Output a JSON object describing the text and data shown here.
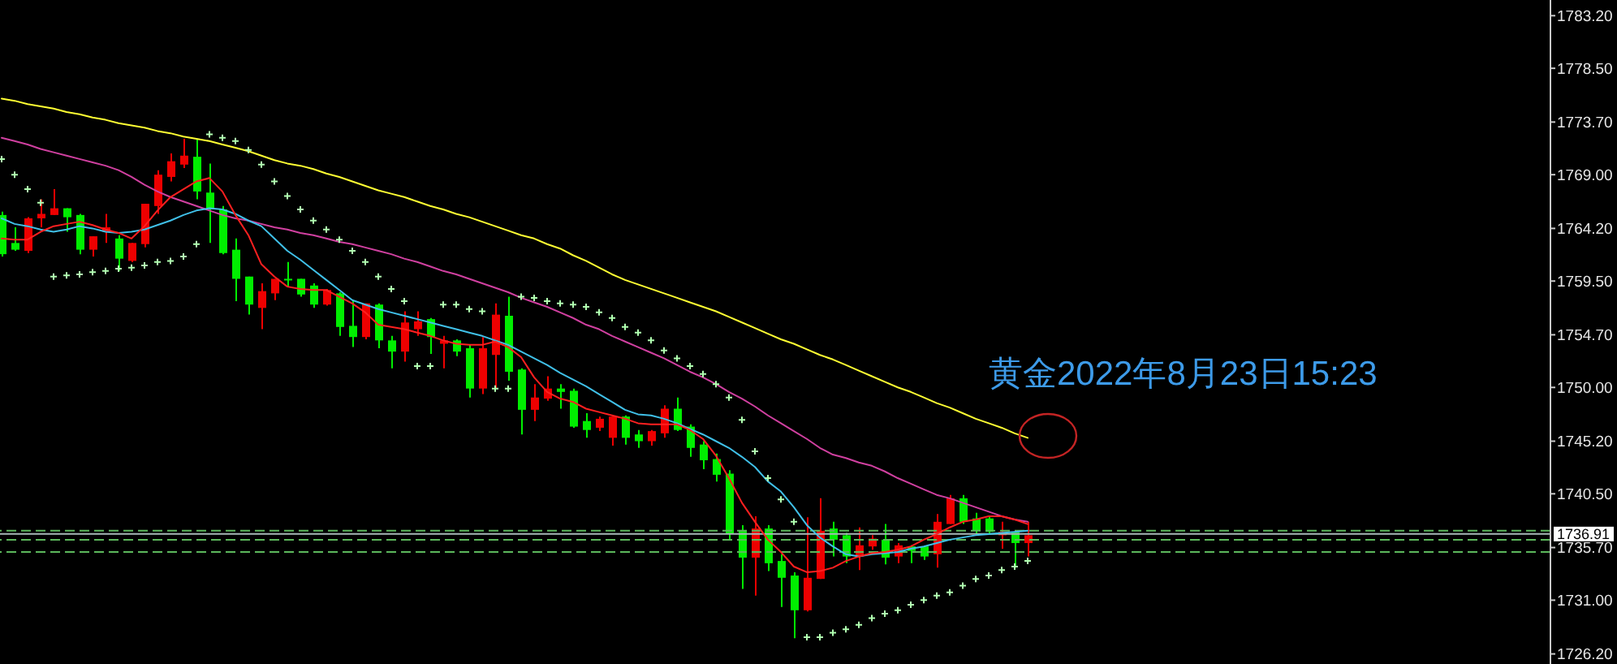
{
  "chart_data": {
    "type": "candlestick",
    "tick_labels": "y",
    "categories": [
      null,
      null,
      null,
      null,
      null,
      null,
      null,
      null,
      null,
      null,
      null,
      null,
      null,
      null,
      null,
      null,
      null,
      null,
      null,
      null,
      null,
      null,
      null,
      null,
      null,
      null,
      null,
      null,
      null,
      null,
      null,
      null,
      null,
      null,
      null,
      null,
      null,
      null,
      null,
      null,
      null,
      null,
      null,
      null,
      null,
      null,
      null,
      null,
      null,
      null,
      null,
      null,
      null,
      null,
      null,
      null,
      null,
      null,
      null,
      null,
      null,
      null,
      null,
      null,
      null,
      null,
      null,
      null,
      null,
      null,
      null,
      null,
      null,
      null,
      null,
      null,
      null,
      null,
      null,
      null
    ],
    "ohlc": [
      [
        1765.4,
        1765.7,
        1761.7,
        1761.9
      ],
      [
        1762.9,
        1764.3,
        1762.2,
        1762.3
      ],
      [
        1762.2,
        1765.2,
        1762.0,
        1765.1
      ],
      [
        1765.1,
        1766.8,
        1764.3,
        1765.5
      ],
      [
        1765.4,
        1767.7,
        1765.4,
        1766.0
      ],
      [
        1766.0,
        1766.0,
        1763.9,
        1765.2
      ],
      [
        1765.4,
        1765.5,
        1761.9,
        1762.3
      ],
      [
        1762.3,
        1763.5,
        1761.7,
        1763.5
      ],
      [
        1763.9,
        1765.5,
        1762.9,
        1764.3
      ],
      [
        1763.3,
        1763.6,
        1760.4,
        1761.5
      ],
      [
        1761.3,
        1762.9,
        1761.2,
        1762.9
      ],
      [
        1762.8,
        1766.4,
        1762.5,
        1766.4
      ],
      [
        1766.2,
        1769.4,
        1765.5,
        1769.0
      ],
      [
        1768.8,
        1770.9,
        1768.4,
        1770.2
      ],
      [
        1769.9,
        1772.2,
        1769.6,
        1770.7
      ],
      [
        1770.6,
        1772.2,
        1766.8,
        1767.5
      ],
      [
        1767.4,
        1770.0,
        1762.9,
        1765.9
      ],
      [
        1765.9,
        1766.2,
        1761.9,
        1762.0
      ],
      [
        1762.3,
        1763.3,
        1757.7,
        1759.7
      ],
      [
        1759.9,
        1759.9,
        1756.5,
        1757.4
      ],
      [
        1757.1,
        1759.3,
        1755.2,
        1758.6
      ],
      [
        1758.4,
        1759.7,
        1757.8,
        1759.7
      ],
      [
        1759.7,
        1761.2,
        1759.0,
        1759.6
      ],
      [
        1759.7,
        1759.7,
        1758.1,
        1758.3
      ],
      [
        1759.1,
        1759.3,
        1757.1,
        1757.4
      ],
      [
        1757.4,
        1758.8,
        1757.3,
        1758.7
      ],
      [
        1758.4,
        1758.5,
        1754.6,
        1755.4
      ],
      [
        1755.5,
        1757.7,
        1753.6,
        1754.5
      ],
      [
        1754.5,
        1757.5,
        1754.3,
        1757.5
      ],
      [
        1757.4,
        1757.5,
        1753.5,
        1754.2
      ],
      [
        1754.2,
        1754.6,
        1751.7,
        1753.2
      ],
      [
        1753.2,
        1756.8,
        1752.3,
        1755.8
      ],
      [
        1755.2,
        1756.8,
        1754.6,
        1755.9
      ],
      [
        1756.1,
        1756.2,
        1753.0,
        1754.5
      ],
      [
        1753.9,
        1754.6,
        1751.7,
        1754.2
      ],
      [
        1754.2,
        1754.3,
        1752.8,
        1753.2
      ],
      [
        1753.5,
        1753.8,
        1749.1,
        1749.9
      ],
      [
        1749.9,
        1754.5,
        1749.4,
        1753.5
      ],
      [
        1752.9,
        1757.5,
        1749.9,
        1756.5
      ],
      [
        1756.4,
        1758.1,
        1750.6,
        1751.4
      ],
      [
        1751.6,
        1751.7,
        1745.8,
        1748.0
      ],
      [
        1748.0,
        1750.3,
        1747.0,
        1749.1
      ],
      [
        1749.0,
        1751.0,
        1748.8,
        1749.9
      ],
      [
        1749.9,
        1750.3,
        1748.1,
        1749.6
      ],
      [
        1749.7,
        1749.9,
        1746.4,
        1746.5
      ],
      [
        1747.0,
        1747.7,
        1745.5,
        1746.2
      ],
      [
        1746.4,
        1747.4,
        1746.1,
        1747.2
      ],
      [
        1745.5,
        1747.4,
        1744.8,
        1747.4
      ],
      [
        1747.4,
        1747.5,
        1744.9,
        1745.5
      ],
      [
        1745.8,
        1746.2,
        1744.6,
        1745.2
      ],
      [
        1745.2,
        1746.2,
        1744.8,
        1746.1
      ],
      [
        1745.9,
        1748.4,
        1745.5,
        1748.1
      ],
      [
        1748.1,
        1749.1,
        1746.1,
        1746.2
      ],
      [
        1746.5,
        1746.7,
        1743.8,
        1744.6
      ],
      [
        1744.9,
        1745.2,
        1742.7,
        1743.5
      ],
      [
        1743.6,
        1744.1,
        1741.6,
        1742.2
      ],
      [
        1742.3,
        1742.6,
        1736.4,
        1736.9
      ],
      [
        1737.2,
        1737.7,
        1732.0,
        1734.8
      ],
      [
        1734.8,
        1738.5,
        1731.4,
        1737.4
      ],
      [
        1737.4,
        1737.7,
        1733.6,
        1734.3
      ],
      [
        1734.5,
        1735.1,
        1730.4,
        1733.0
      ],
      [
        1733.2,
        1733.5,
        1727.6,
        1730.1
      ],
      [
        1730.1,
        1738.4,
        1730.0,
        1733.0
      ],
      [
        1732.9,
        1740.1,
        1732.9,
        1737.2
      ],
      [
        1737.4,
        1738.0,
        1734.9,
        1736.4
      ],
      [
        1736.8,
        1737.0,
        1734.3,
        1734.9
      ],
      [
        1734.9,
        1737.5,
        1733.7,
        1735.9
      ],
      [
        1735.8,
        1736.8,
        1735.5,
        1736.5
      ],
      [
        1736.4,
        1737.8,
        1734.2,
        1734.8
      ],
      [
        1734.9,
        1736.1,
        1734.3,
        1735.9
      ],
      [
        1735.8,
        1735.9,
        1734.3,
        1735.4
      ],
      [
        1735.8,
        1735.8,
        1734.6,
        1734.9
      ],
      [
        1735.1,
        1738.7,
        1733.9,
        1738.0
      ],
      [
        1737.8,
        1740.4,
        1737.8,
        1740.1
      ],
      [
        1740.1,
        1740.4,
        1737.8,
        1738.0
      ],
      [
        1738.3,
        1738.8,
        1736.9,
        1737.2
      ],
      [
        1738.3,
        1738.5,
        1736.9,
        1737.1
      ],
      [
        1736.8,
        1738.0,
        1735.6,
        1737.1
      ],
      [
        1737.1,
        1737.2,
        1733.9,
        1736.1
      ],
      [
        1736.1,
        1738.0,
        1734.9,
        1736.8
      ]
    ],
    "colors": [
      "#00ee00",
      "#00ee00",
      "#ee0000",
      "#ee0000",
      "#ee0000",
      "#00ee00",
      "#00ee00",
      "#ee0000",
      "#ee0000",
      "#00ee00",
      "#ee0000",
      "#ee0000",
      "#ee0000",
      "#ee0000",
      "#ee0000",
      "#00ee00",
      "#00ee00",
      "#00ee00",
      "#00ee00",
      "#00ee00",
      "#ee0000",
      "#ee0000",
      "#00ee00",
      "#00ee00",
      "#00ee00",
      "#ee0000",
      "#00ee00",
      "#00ee00",
      "#ee0000",
      "#00ee00",
      "#00ee00",
      "#ee0000",
      "#ee0000",
      "#00ee00",
      "#ee0000",
      "#00ee00",
      "#00ee00",
      "#ee0000",
      "#ee0000",
      "#00ee00",
      "#00ee00",
      "#ee0000",
      "#ee0000",
      "#00ee00",
      "#00ee00",
      "#00ee00",
      "#ee0000",
      "#ee0000",
      "#00ee00",
      "#00ee00",
      "#ee0000",
      "#ee0000",
      "#00ee00",
      "#00ee00",
      "#00ee00",
      "#00ee00",
      "#00ee00",
      "#00ee00",
      "#ee0000",
      "#00ee00",
      "#00ee00",
      "#00ee00",
      "#ee0000",
      "#ee0000",
      "#00ee00",
      "#00ee00",
      "#ee0000",
      "#ee0000",
      "#00ee00",
      "#ee0000",
      "#00ee00",
      "#00ee00",
      "#ee0000",
      "#ee0000",
      "#00ee00",
      "#00ee00",
      "#00ee00",
      "#ee0000",
      "#00ee00",
      "#ee0000"
    ],
    "series": [
      {
        "type": "line",
        "color": "#ffff33",
        "values": [
          1775.8,
          1775.6,
          1775.3,
          1775.1,
          1774.9,
          1774.6,
          1774.4,
          1774.1,
          1773.9,
          1773.6,
          1773.4,
          1773.2,
          1772.9,
          1772.7,
          1772.4,
          1772.2,
          1772.0,
          1771.7,
          1771.4,
          1771.1,
          1770.7,
          1770.3,
          1770.0,
          1769.8,
          1769.5,
          1769.1,
          1768.8,
          1768.4,
          1768.0,
          1767.6,
          1767.3,
          1767.0,
          1766.6,
          1766.2,
          1765.9,
          1765.5,
          1765.2,
          1764.8,
          1764.4,
          1764.0,
          1763.6,
          1763.3,
          1762.8,
          1762.4,
          1761.8,
          1761.3,
          1760.7,
          1760.1,
          1759.6,
          1759.2,
          1758.8,
          1758.4,
          1758.0,
          1757.6,
          1757.2,
          1756.8,
          1756.3,
          1755.8,
          1755.3,
          1754.8,
          1754.3,
          1753.9,
          1753.4,
          1752.9,
          1752.5,
          1752.0,
          1751.5,
          1751.0,
          1750.5,
          1750.0,
          1749.6,
          1749.1,
          1748.6,
          1748.2,
          1747.7,
          1747.2,
          1746.8,
          1746.4,
          1745.9,
          1745.5
        ]
      },
      {
        "type": "line",
        "color": "#d040a0",
        "values": [
          1772.3,
          1772.0,
          1771.7,
          1771.3,
          1771.0,
          1770.7,
          1770.4,
          1770.1,
          1769.8,
          1769.4,
          1768.8,
          1768.1,
          1767.5,
          1767.0,
          1766.6,
          1766.2,
          1765.8,
          1765.4,
          1765.1,
          1764.9,
          1764.6,
          1764.3,
          1764.1,
          1763.8,
          1763.6,
          1763.3,
          1763.0,
          1762.8,
          1762.5,
          1762.2,
          1761.9,
          1761.5,
          1761.2,
          1760.8,
          1760.4,
          1760.1,
          1759.7,
          1759.3,
          1758.9,
          1758.5,
          1758.0,
          1757.6,
          1757.2,
          1756.7,
          1756.2,
          1755.6,
          1755.2,
          1754.6,
          1754.1,
          1753.6,
          1753.1,
          1752.6,
          1752.0,
          1751.4,
          1750.9,
          1750.3,
          1749.6,
          1749.0,
          1748.3,
          1747.5,
          1746.8,
          1746.1,
          1745.4,
          1744.6,
          1744.0,
          1743.7,
          1743.3,
          1743.0,
          1742.5,
          1741.9,
          1741.4,
          1740.9,
          1740.4,
          1740.1,
          1739.7,
          1739.3,
          1738.9,
          1738.5,
          1738.2,
          1738.0
        ]
      },
      {
        "type": "line",
        "color": "#40c0e8",
        "values": [
          1765.1,
          1764.6,
          1764.4,
          1764.1,
          1763.9,
          1764.1,
          1764.4,
          1764.2,
          1763.9,
          1763.8,
          1763.9,
          1764.1,
          1764.5,
          1764.9,
          1765.4,
          1765.8,
          1766.0,
          1765.9,
          1765.5,
          1764.9,
          1764.4,
          1763.3,
          1762.2,
          1761.4,
          1760.5,
          1759.6,
          1758.7,
          1757.8,
          1757.4,
          1757.0,
          1756.7,
          1756.4,
          1756.1,
          1755.8,
          1755.5,
          1755.2,
          1754.9,
          1754.6,
          1754.2,
          1753.8,
          1753.2,
          1752.6,
          1752.0,
          1751.3,
          1750.7,
          1750.1,
          1749.4,
          1748.7,
          1748.0,
          1747.6,
          1747.5,
          1747.2,
          1746.8,
          1746.3,
          1745.8,
          1745.2,
          1744.6,
          1743.8,
          1742.9,
          1741.6,
          1740.7,
          1739.3,
          1737.7,
          1736.6,
          1735.8,
          1735.1,
          1734.9,
          1735.1,
          1735.2,
          1735.3,
          1735.6,
          1735.8,
          1736.1,
          1736.4,
          1736.6,
          1736.8,
          1736.9,
          1737.0,
          1737.1,
          1737.2
        ]
      },
      {
        "type": "line",
        "color": "#ff2020",
        "values": [
          1763.3,
          1763.2,
          1763.2,
          1763.9,
          1764.4,
          1764.6,
          1764.8,
          1764.5,
          1764.1,
          1763.8,
          1763.3,
          1764.4,
          1765.8,
          1767.0,
          1767.7,
          1768.4,
          1768.7,
          1767.5,
          1765.4,
          1763.6,
          1761.0,
          1759.9,
          1759.0,
          1758.8,
          1758.7,
          1758.7,
          1758.1,
          1757.5,
          1756.7,
          1755.6,
          1755.4,
          1755.2,
          1754.9,
          1754.6,
          1754.2,
          1753.9,
          1753.8,
          1753.8,
          1754.1,
          1753.6,
          1752.7,
          1750.9,
          1749.6,
          1749.0,
          1748.7,
          1748.1,
          1747.8,
          1747.5,
          1747.2,
          1746.8,
          1746.7,
          1746.7,
          1746.7,
          1746.2,
          1745.4,
          1743.9,
          1741.9,
          1739.7,
          1738.0,
          1736.4,
          1735.3,
          1734.0,
          1733.5,
          1733.6,
          1733.9,
          1734.5,
          1734.9,
          1735.2,
          1735.3,
          1735.5,
          1735.8,
          1736.4,
          1736.9,
          1737.5,
          1738.0,
          1738.2,
          1738.5,
          1738.5,
          1738.2,
          1737.8
        ]
      },
      {
        "type": "scatter",
        "color": "#b0ffb0",
        "marker": "cross",
        "values": [
          1770.4,
          1769.0,
          1767.7,
          1766.5,
          1759.9,
          1760.0,
          1760.1,
          1760.3,
          1760.4,
          1760.6,
          1760.7,
          1760.9,
          1761.2,
          1761.3,
          1761.7,
          1762.8,
          1772.6,
          1772.3,
          1772.0,
          1771.2,
          1769.9,
          1768.4,
          1767.1,
          1765.9,
          1764.9,
          1764.1,
          1763.2,
          1762.2,
          1761.2,
          1759.9,
          1758.8,
          1757.7,
          1751.9,
          1751.9,
          1757.4,
          1757.4,
          1757.0,
          1756.8,
          1749.9,
          1749.9,
          1758.1,
          1758.0,
          1757.7,
          1757.5,
          1757.4,
          1757.2,
          1756.7,
          1756.2,
          1755.4,
          1754.9,
          1754.2,
          1753.3,
          1752.6,
          1751.9,
          1751.2,
          1750.3,
          1749.1,
          1747.1,
          1744.3,
          1741.9,
          1740.0,
          1738.0,
          1727.7,
          1727.7,
          1728.1,
          1728.4,
          1728.8,
          1729.4,
          1729.8,
          1730.1,
          1730.6,
          1731.0,
          1731.4,
          1731.7,
          1732.3,
          1732.9,
          1733.2,
          1733.7,
          1734.0,
          1734.5
        ]
      }
    ],
    "ylim": [
      1725.3,
      1784.6
    ],
    "yticks": [
      {
        "value": 1783.2,
        "label": "1783.20"
      },
      {
        "value": 1778.5,
        "label": "1778.50"
      },
      {
        "value": 1773.7,
        "label": "1773.70"
      },
      {
        "value": 1769.0,
        "label": "1769.00"
      },
      {
        "value": 1764.2,
        "label": "1764.20"
      },
      {
        "value": 1759.5,
        "label": "1759.50"
      },
      {
        "value": 1754.7,
        "label": "1754.70"
      },
      {
        "value": 1750.0,
        "label": "1750.00"
      },
      {
        "value": 1745.2,
        "label": "1745.20"
      },
      {
        "value": 1740.5,
        "label": "1740.50"
      },
      {
        "value": 1735.7,
        "label": "1735.70"
      },
      {
        "value": 1731.0,
        "label": "1731.00"
      },
      {
        "value": 1726.2,
        "label": "1726.20"
      }
    ],
    "ref_lines": [
      {
        "axis": "y",
        "value": 1737.2,
        "color": "#5cb85c",
        "line_style": "dashed"
      },
      {
        "axis": "y",
        "value": 1736.91,
        "label": "1736.91",
        "color": "#a8b8b8"
      },
      {
        "axis": "y",
        "value": 1736.4,
        "color": "#5cb85c",
        "line_style": "dashed"
      },
      {
        "axis": "y",
        "value": 1735.3,
        "color": "#5cb85c",
        "line_style": "dashed"
      }
    ],
    "annotations": [
      "黄金2022年8月23日15:23"
    ]
  }
}
